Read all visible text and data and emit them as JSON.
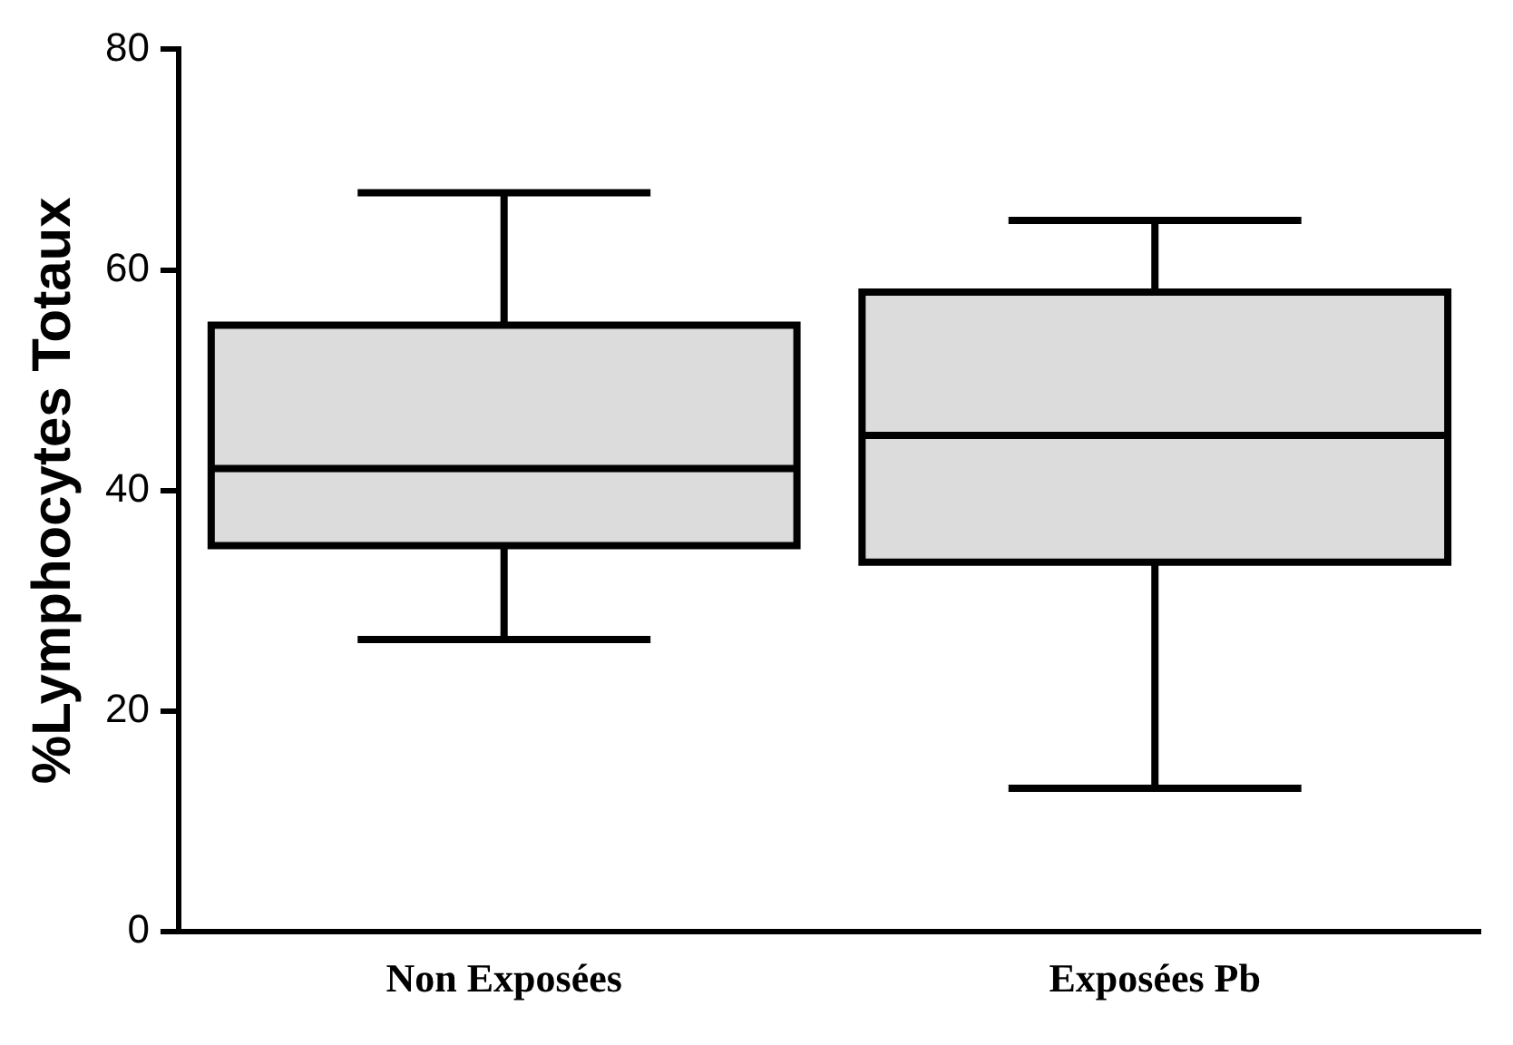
{
  "chart_data": {
    "type": "box",
    "ylabel": "%Lymphocytes Totaux",
    "categories": [
      "Non Exposées",
      "Exposées Pb"
    ],
    "boxes": [
      {
        "low": 26.5,
        "q1": 35,
        "median": 42,
        "q3": 55,
        "high": 67
      },
      {
        "low": 13,
        "q1": 33.5,
        "median": 45,
        "q3": 58,
        "high": 64.5
      }
    ],
    "color": "#dcdcdc",
    "ylim": [
      0,
      80
    ],
    "yticks": [
      0,
      20,
      40,
      60,
      80
    ],
    "grid": false,
    "legend": false
  }
}
